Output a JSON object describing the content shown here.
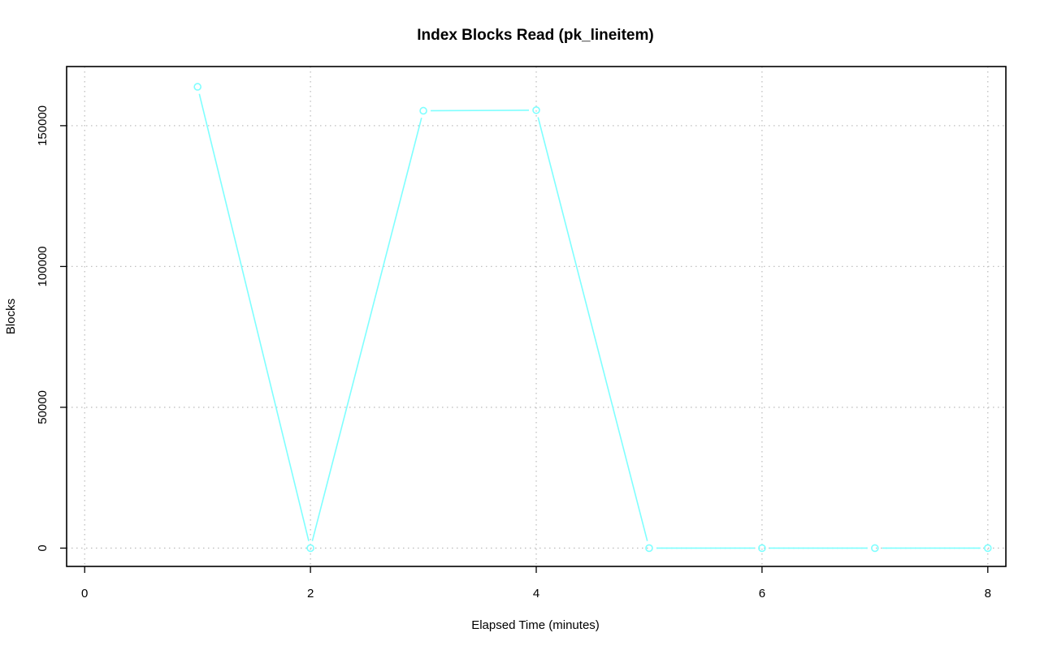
{
  "chart_data": {
    "type": "line",
    "title": "Index Blocks Read (pk_lineitem)",
    "xlabel": "Elapsed Time (minutes)",
    "ylabel": "Blocks",
    "xlim": [
      -0.16,
      8.16
    ],
    "ylim": [
      -6500,
      171000
    ],
    "xticks": [
      0,
      2,
      4,
      6,
      8
    ],
    "yticks": [
      0,
      50000,
      100000,
      150000
    ],
    "grid": true,
    "series": [
      {
        "color": "#7fffff",
        "marker": "open-circle",
        "x": [
          1,
          2,
          3,
          4,
          5,
          6,
          7,
          8
        ],
        "y": [
          163800,
          0,
          155300,
          155500,
          0,
          0,
          0,
          0
        ]
      }
    ]
  }
}
